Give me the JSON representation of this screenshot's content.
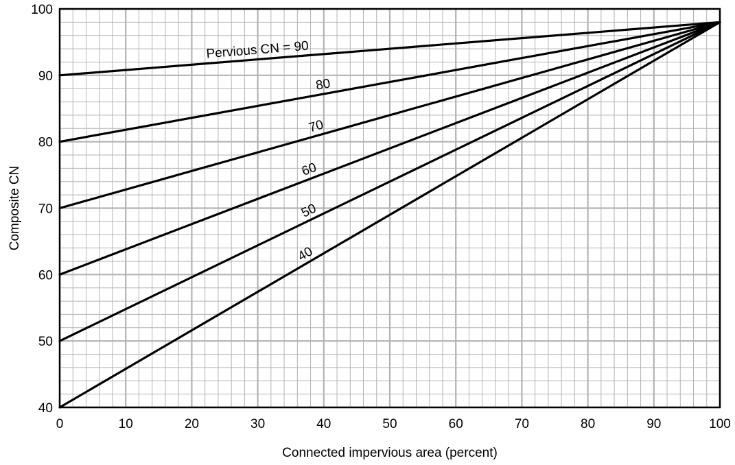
{
  "chart_data": {
    "type": "line",
    "title": "",
    "xlabel": "Connected impervious area (percent)",
    "ylabel": "Composite CN",
    "xlim": [
      0,
      100
    ],
    "ylim": [
      40,
      100
    ],
    "x_ticks": [
      "0",
      "10",
      "20",
      "30",
      "40",
      "50",
      "60",
      "70",
      "80",
      "90",
      "100"
    ],
    "y_ticks": [
      "40",
      "50",
      "60",
      "70",
      "80",
      "90",
      "100"
    ],
    "grid": true,
    "x": [
      0,
      100
    ],
    "series": [
      {
        "name": "Pervious CN = 90",
        "label_text": "Pervious CN = 90",
        "values": [
          90,
          98
        ]
      },
      {
        "name": "80",
        "label_text": "80",
        "values": [
          80,
          98
        ]
      },
      {
        "name": "70",
        "label_text": "70",
        "values": [
          70,
          98
        ]
      },
      {
        "name": "60",
        "label_text": "60",
        "values": [
          60,
          98
        ]
      },
      {
        "name": "50",
        "label_text": "50",
        "values": [
          50,
          98
        ]
      },
      {
        "name": "40",
        "label_text": "40",
        "values": [
          40,
          98
        ]
      }
    ],
    "line_color": "#000000",
    "grid_color": "#b3b3b3"
  }
}
